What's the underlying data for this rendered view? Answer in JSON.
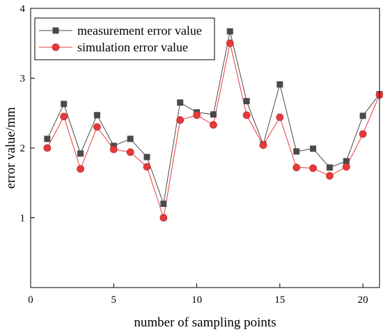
{
  "chart_data": {
    "type": "line",
    "title": "",
    "xlabel": "number of sampling points",
    "ylabel": "error value/mm",
    "xlim": [
      0,
      21
    ],
    "ylim": [
      0,
      4
    ],
    "x_ticks": [
      0,
      5,
      10,
      15,
      20
    ],
    "y_ticks": [
      1,
      2,
      3,
      4
    ],
    "x_tick_labels": [
      "0",
      "5",
      "10",
      "15",
      "20"
    ],
    "y_tick_labels": [
      "1",
      "2",
      "3",
      "4"
    ],
    "grid": false,
    "legend_position": "top-left",
    "x": [
      1,
      2,
      3,
      4,
      5,
      6,
      7,
      8,
      9,
      10,
      11,
      12,
      13,
      14,
      15,
      16,
      17,
      18,
      19,
      20,
      21
    ],
    "series": [
      {
        "name": "measurement error value",
        "marker": "square",
        "color": "#4a4a4a",
        "values": [
          2.13,
          2.63,
          1.92,
          2.47,
          2.03,
          2.13,
          1.87,
          1.2,
          2.65,
          2.51,
          2.48,
          3.67,
          2.67,
          2.05,
          2.91,
          1.95,
          1.99,
          1.72,
          1.81,
          2.46,
          2.77
        ]
      },
      {
        "name": "simulation error value",
        "marker": "circle",
        "color": "#e8393b",
        "values": [
          2.0,
          2.45,
          1.7,
          2.3,
          1.98,
          1.94,
          1.73,
          1.0,
          2.4,
          2.47,
          2.33,
          3.5,
          2.47,
          2.04,
          2.44,
          1.72,
          1.71,
          1.6,
          1.73,
          2.2,
          2.76
        ]
      }
    ]
  }
}
